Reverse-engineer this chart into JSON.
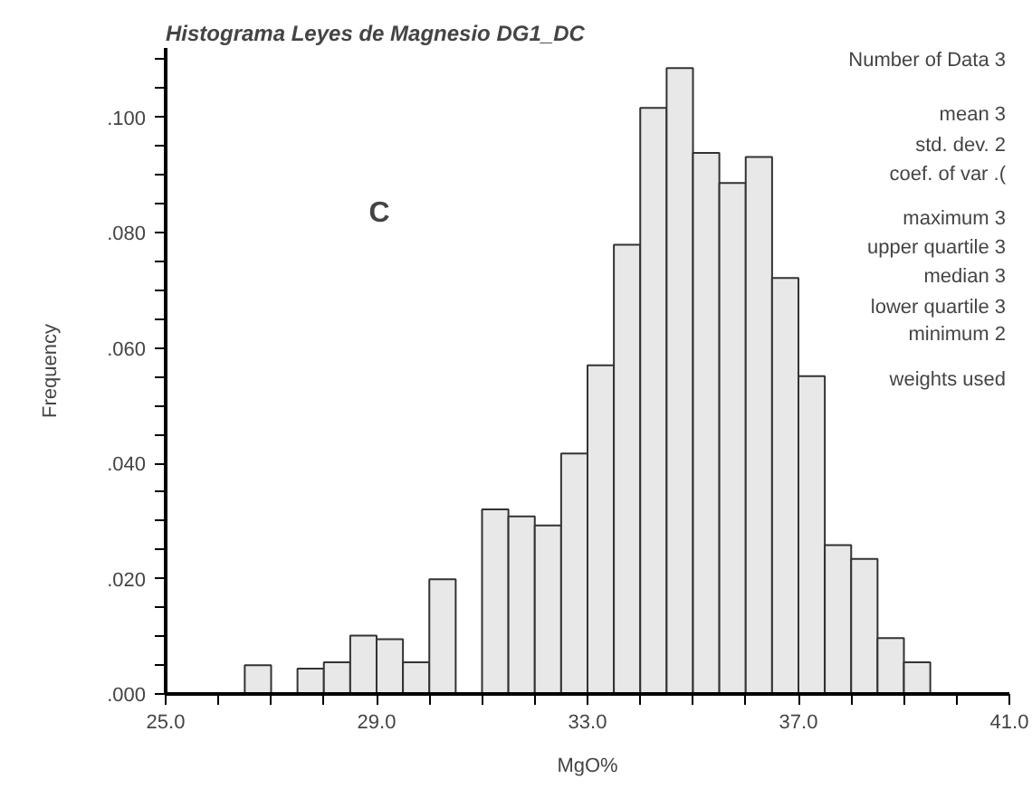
{
  "chart_data": {
    "type": "histogram",
    "title": "Histograma Leyes de Magnesio DG1_DC",
    "xlabel": "MgO%",
    "ylabel": "Frequency",
    "bins": [
      26.5,
      27.0,
      27.5,
      28.0,
      28.5,
      29.0,
      29.5,
      30.0,
      30.5,
      31.0,
      31.5,
      32.0,
      32.5,
      33.0,
      33.5,
      34.0,
      34.5,
      35.0,
      35.5,
      36.0,
      36.5,
      37.0,
      37.5,
      38.0,
      38.5,
      39.0,
      39.5
    ],
    "values": [
      0.005,
      0,
      0.0044,
      0.0055,
      0.0101,
      0.0095,
      0.0055,
      0.0199,
      0,
      0.032,
      0.0308,
      0.0292,
      0.0417,
      0.057,
      0.0779,
      0.1016,
      0.1085,
      0.0938,
      0.0886,
      0.0931,
      0.0721,
      0.0551,
      0.0258,
      0.0234,
      0.0097,
      0.0055
    ],
    "color": "#e8e8e8",
    "xlim": [
      25,
      41
    ],
    "ylim": [
      0,
      0.112
    ],
    "xticks": [
      {
        "value": 25,
        "label": "25.0"
      },
      {
        "value": 26,
        "label": null
      },
      {
        "value": 27,
        "label": null
      },
      {
        "value": 28,
        "label": null
      },
      {
        "value": 29,
        "label": "29.0"
      },
      {
        "value": 30,
        "label": null
      },
      {
        "value": 31,
        "label": null
      },
      {
        "value": 32,
        "label": null
      },
      {
        "value": 33,
        "label": "33.0"
      },
      {
        "value": 34,
        "label": null
      },
      {
        "value": 35,
        "label": null
      },
      {
        "value": 36,
        "label": null
      },
      {
        "value": 37,
        "label": "37.0"
      },
      {
        "value": 38,
        "label": null
      },
      {
        "value": 39,
        "label": null
      },
      {
        "value": 40,
        "label": null
      },
      {
        "value": 41,
        "label": "41.0"
      }
    ],
    "yticks": [
      {
        "value": 0,
        "label": ".000"
      },
      {
        "value": 0.005,
        "label": null
      },
      {
        "value": 0.01,
        "label": null
      },
      {
        "value": 0.015,
        "label": null
      },
      {
        "value": 0.02,
        "label": ".020"
      },
      {
        "value": 0.025,
        "label": null
      },
      {
        "value": 0.03,
        "label": null
      },
      {
        "value": 0.035,
        "label": null
      },
      {
        "value": 0.04,
        "label": ".040"
      },
      {
        "value": 0.045,
        "label": null
      },
      {
        "value": 0.05,
        "label": null
      },
      {
        "value": 0.055,
        "label": null
      },
      {
        "value": 0.06,
        "label": ".060"
      },
      {
        "value": 0.065,
        "label": null
      },
      {
        "value": 0.07,
        "label": null
      },
      {
        "value": 0.075,
        "label": null
      },
      {
        "value": 0.08,
        "label": ".080"
      },
      {
        "value": 0.085,
        "label": null
      },
      {
        "value": 0.09,
        "label": null
      },
      {
        "value": 0.095,
        "label": null
      },
      {
        "value": 0.1,
        "label": ".100"
      },
      {
        "value": 0.105,
        "label": null
      },
      {
        "value": 0.11,
        "label": null
      }
    ],
    "grid": false,
    "annotations": [
      "C",
      "Number of Data 3",
      "mean 3",
      "std. dev. 2",
      "coef. of var .(",
      "maximum 3",
      "upper quartile 3",
      "median 3",
      "lower quartile 3",
      "minimum 2",
      "weights used"
    ]
  }
}
